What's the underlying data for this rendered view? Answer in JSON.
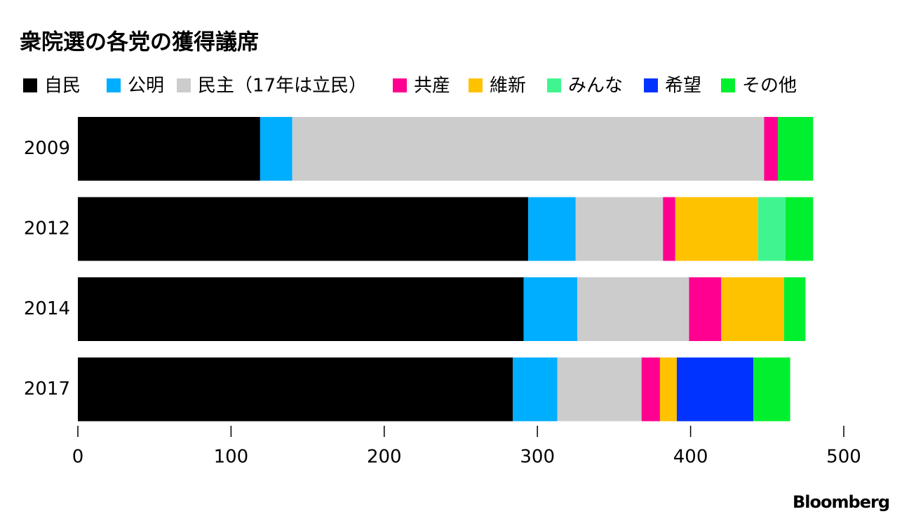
{
  "chart_data": {
    "type": "stacked-bar-horizontal",
    "title": "衆院選の各党の獲得議席",
    "categories": [
      "2009",
      "2012",
      "2014",
      "2017"
    ],
    "series": [
      {
        "name": "自民",
        "color": "#000000",
        "values": [
          119,
          294,
          291,
          284
        ]
      },
      {
        "name": "公明",
        "color": "#00aeff",
        "values": [
          21,
          31,
          35,
          29
        ]
      },
      {
        "name": "民主（17年は立民）",
        "color": "#cccccc",
        "values": [
          308,
          57,
          73,
          55
        ]
      },
      {
        "name": "共産",
        "color": "#ff0090",
        "values": [
          9,
          8,
          21,
          12
        ]
      },
      {
        "name": "維新",
        "color": "#ffc200",
        "values": [
          null,
          54,
          41,
          11
        ]
      },
      {
        "name": "みんな",
        "color": "#40f590",
        "values": [
          null,
          18,
          null,
          null
        ]
      },
      {
        "name": "希望",
        "color": "#0033ff",
        "values": [
          null,
          null,
          null,
          50
        ]
      },
      {
        "name": "その他",
        "color": "#00f030",
        "values": [
          23,
          18,
          14,
          24
        ]
      }
    ],
    "xlim": [
      0,
      500
    ],
    "xticks": [
      0,
      100,
      200,
      300,
      400,
      500
    ],
    "source": "Bloomberg"
  }
}
